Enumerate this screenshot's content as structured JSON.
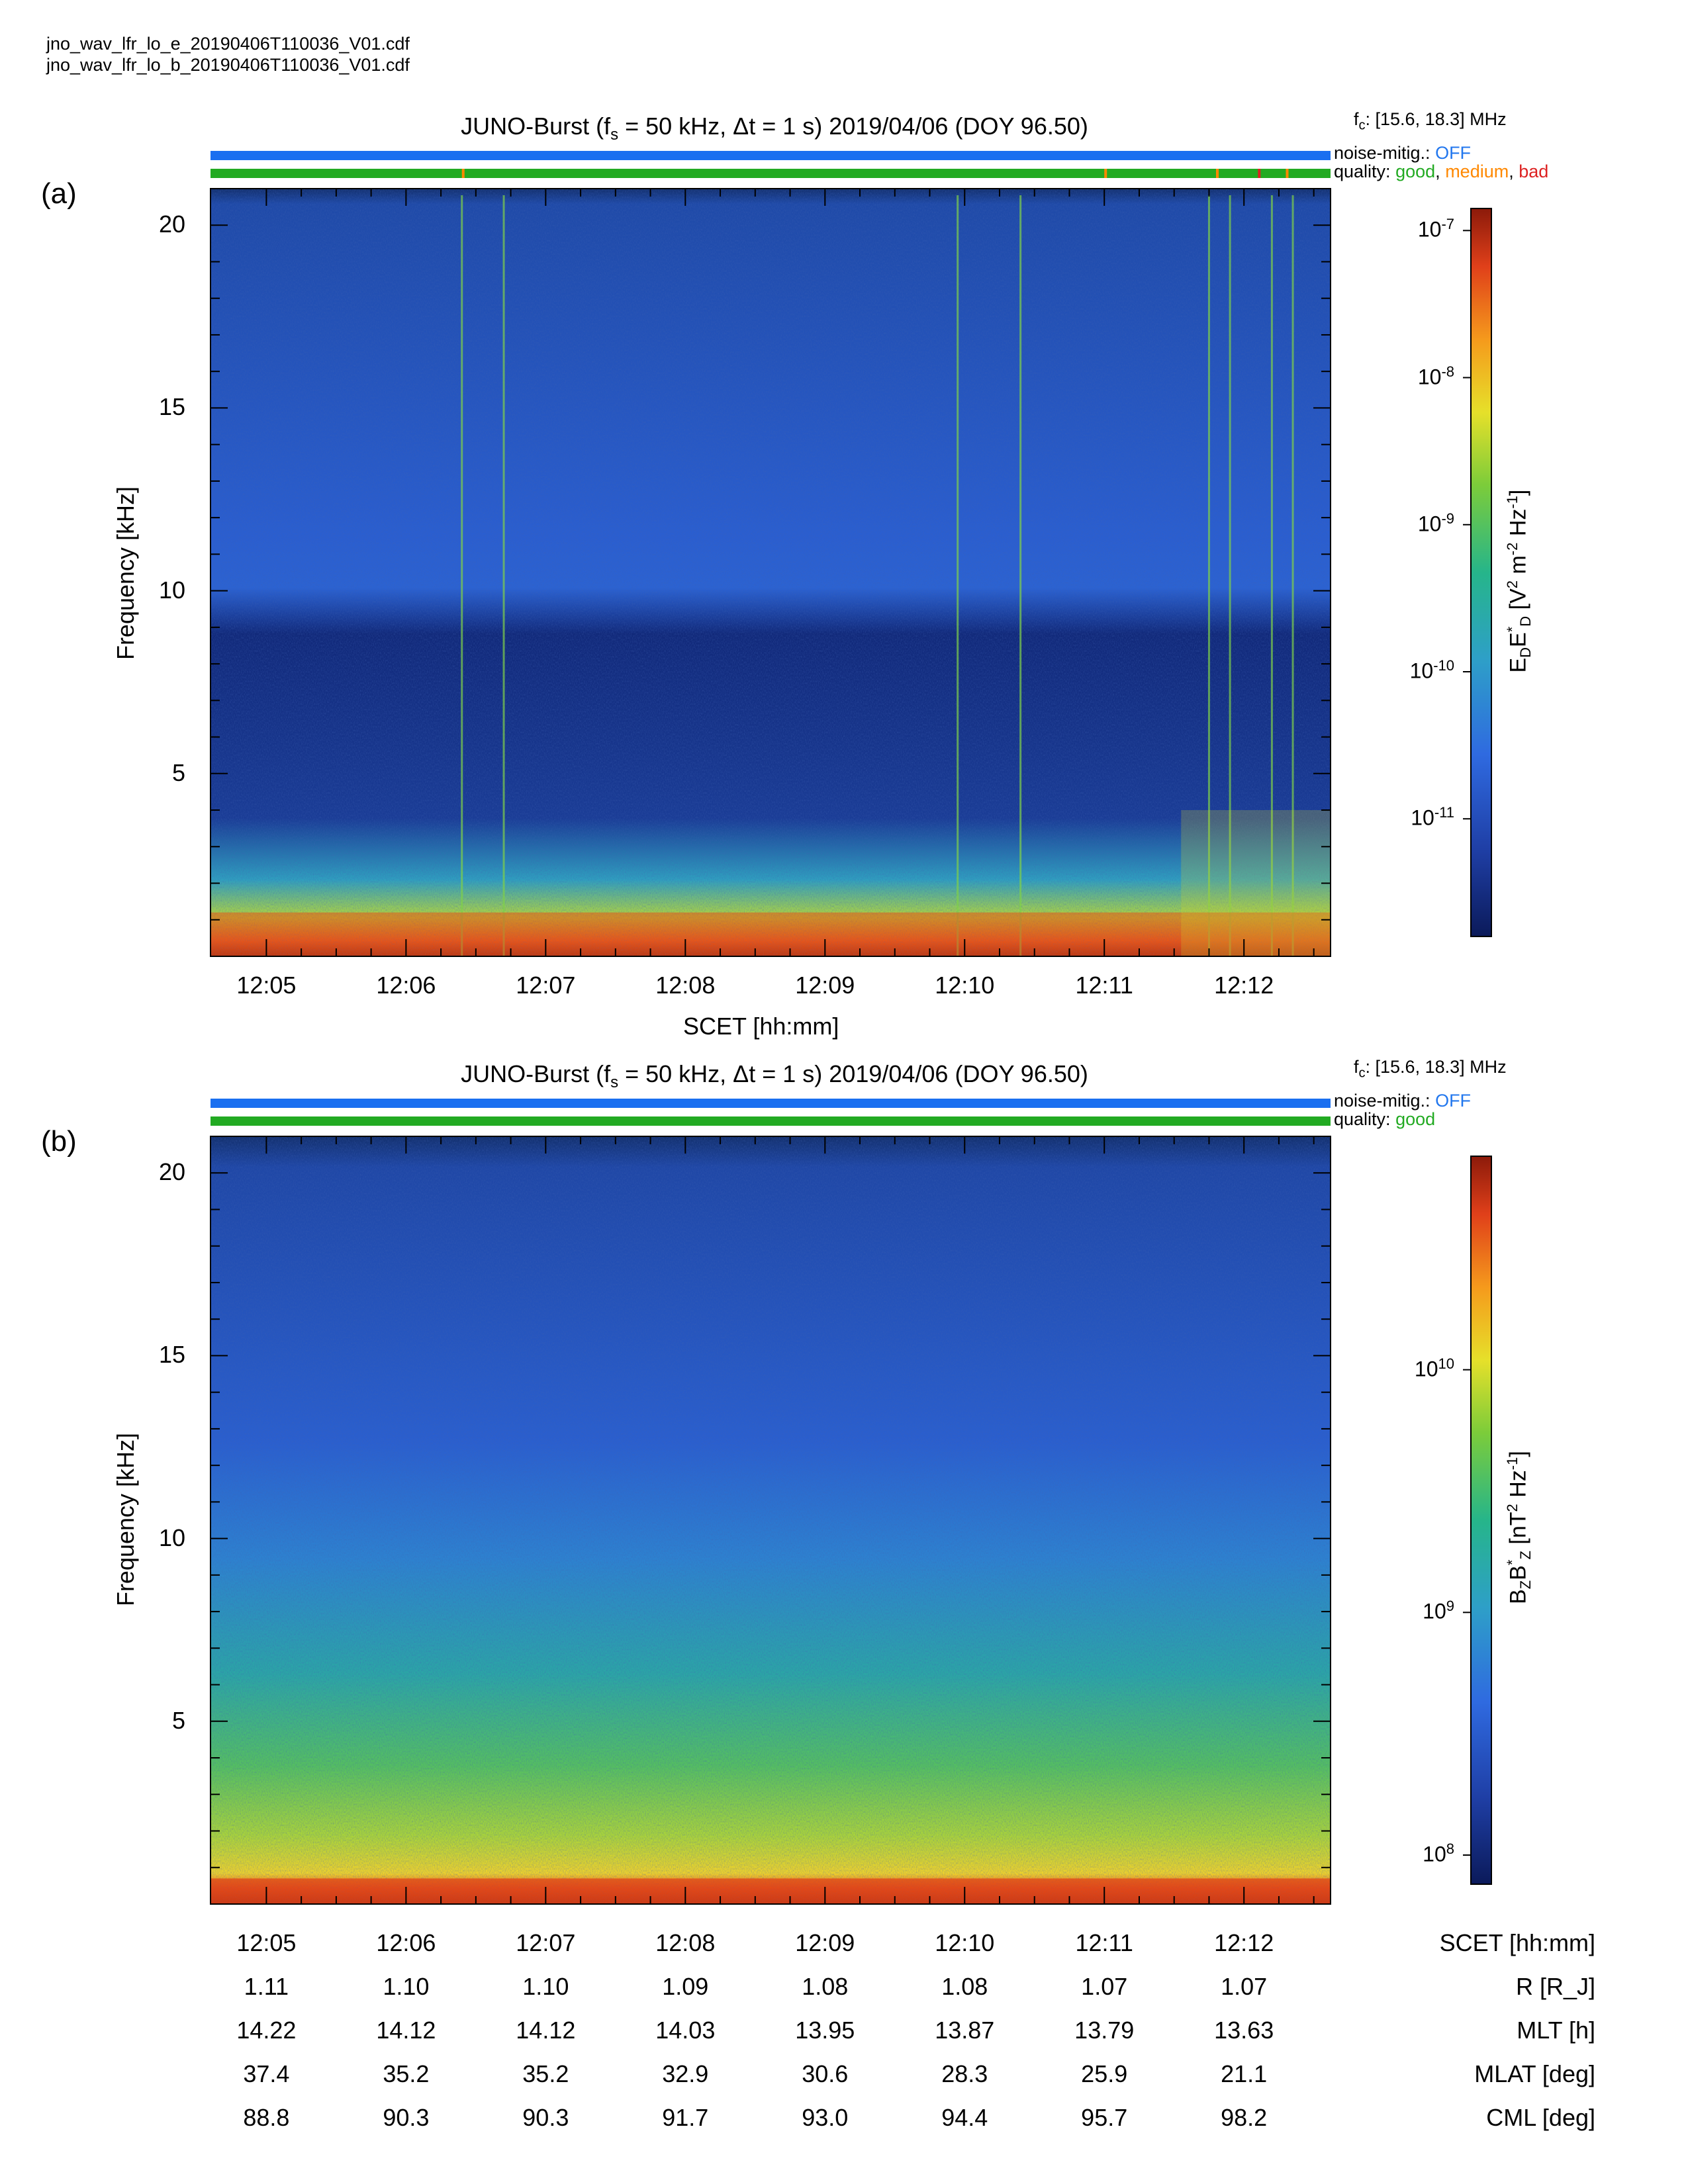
{
  "header": {
    "files": [
      "jno_wav_lfr_lo_e_20190406T110036_V01.cdf",
      "jno_wav_lfr_lo_b_20190406T110036_V01.cdf"
    ]
  },
  "colors": {
    "noise_bar": "#1a6ff0",
    "quality_good": "#22aa22",
    "quality_medium": "#ff8800",
    "quality_bad": "#dd2222",
    "colormap": [
      "#0b1a5a",
      "#1f3fa6",
      "#2f6ae0",
      "#2e9fc8",
      "#26b58a",
      "#7ccc3a",
      "#e6e02a",
      "#f59a1c",
      "#e0401a",
      "#8c1a0a"
    ]
  },
  "panels": [
    {
      "letter": "(a)",
      "title_main": "JUNO-Burst (f",
      "title_sub": "s",
      "title_rest": " = 50 kHz, Δt = 1 s)  2019/04/06 (DOY 96.50)",
      "fc_label": "f",
      "fc_sub": "c",
      "fc_value": ": [15.6, 18.3] MHz",
      "noise_label": "noise-mitig.:",
      "noise_value": "OFF",
      "quality_label": "quality:",
      "quality_good": "good",
      "quality_sep1": ",",
      "quality_medium": "medium",
      "quality_sep2": ",",
      "quality_bad": "bad",
      "ylabel": "Frequency [kHz]",
      "xlabel": "SCET [hh:mm]",
      "cb_label": "E_D E*_D [V² m⁻² Hz⁻¹]",
      "cb_ticks": [
        {
          "base": "10",
          "exp": "-7",
          "v": -7
        },
        {
          "base": "10",
          "exp": "-8",
          "v": -8
        },
        {
          "base": "10",
          "exp": "-9",
          "v": -9
        },
        {
          "base": "10",
          "exp": "-10",
          "v": -10
        },
        {
          "base": "10",
          "exp": "-11",
          "v": -11
        }
      ],
      "cb_range": [
        -11.8,
        -6.85
      ]
    },
    {
      "letter": "(b)",
      "title_main": "JUNO-Burst (f",
      "title_sub": "s",
      "title_rest": " = 50 kHz, Δt = 1 s)  2019/04/06 (DOY 96.50)",
      "fc_label": "f",
      "fc_sub": "c",
      "fc_value": ": [15.6, 18.3] MHz",
      "noise_label": "noise-mitig.:",
      "noise_value": "OFF",
      "quality_label": "quality:",
      "quality_good": "good",
      "ylabel": "Frequency [kHz]",
      "cb_label": "B_Z B*_Z [nT² Hz⁻¹]",
      "cb_ticks": [
        {
          "base": "10",
          "exp": "10",
          "v": 10
        },
        {
          "base": "10",
          "exp": "9",
          "v": 9
        },
        {
          "base": "10",
          "exp": "8",
          "v": 8
        }
      ],
      "cb_range": [
        7.88,
        10.88
      ]
    }
  ],
  "chart_data": {
    "type": "heatmap",
    "x_axis": {
      "label": "SCET [hh:mm]",
      "ticks": [
        "12:05",
        "12:06",
        "12:07",
        "12:08",
        "12:09",
        "12:10",
        "12:11",
        "12:12"
      ]
    },
    "y_axis": {
      "label": "Frequency [kHz]",
      "ticks": [
        5,
        10,
        15,
        20
      ],
      "ylim": [
        0,
        21
      ]
    },
    "quality_flags_a": {
      "medium_at": [
        "12:06.4",
        "12:11.0",
        "12:11.8",
        "12:12.3"
      ],
      "bad_at": [
        "12:12.1"
      ]
    },
    "ephemeris": {
      "SCET [hh:mm]": [
        "12:05",
        "12:06",
        "12:07",
        "12:08",
        "12:09",
        "12:10",
        "12:11",
        "12:12"
      ],
      "R [R_J]": [
        "1.11",
        "1.10",
        "1.10",
        "1.09",
        "1.08",
        "1.08",
        "1.07",
        "1.07"
      ],
      "MLT [h]": [
        "14.22",
        "14.12",
        "14.12",
        "14.03",
        "13.95",
        "13.87",
        "13.79",
        "13.63"
      ],
      "MLAT [deg]": [
        "37.4",
        "35.2",
        "35.2",
        "32.9",
        "30.6",
        "28.3",
        "25.9",
        "21.1"
      ],
      "CML [deg]": [
        "88.8",
        "90.3",
        "90.3",
        "91.7",
        "93.0",
        "94.4",
        "95.7",
        "98.2"
      ]
    },
    "ephemeris_labels": [
      "SCET [hh:mm]",
      "R [R_J]",
      "MLT [h]",
      "MLAT [deg]",
      "CML [deg]"
    ]
  }
}
